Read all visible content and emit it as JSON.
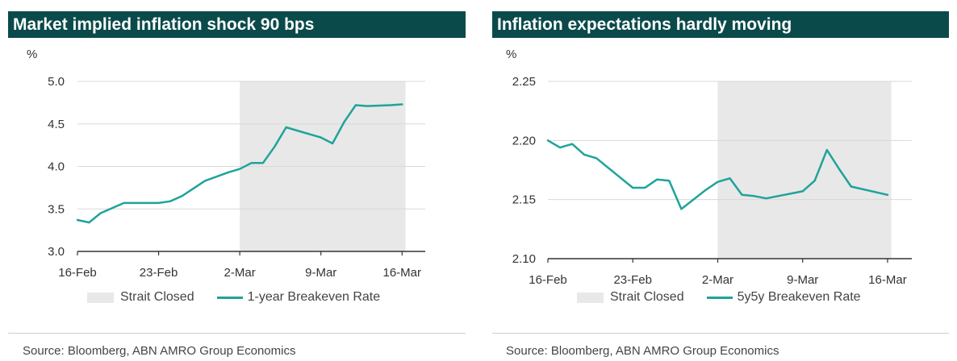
{
  "colors": {
    "title_bg": "#0b4a4a",
    "line": "#1fa39a",
    "shade": "#e8e8e8",
    "grid": "#d9d9d9",
    "axis": "#333333"
  },
  "chart_data": [
    {
      "type": "line",
      "title": "Market implied inflation shock 90 bps",
      "ylabel": "%",
      "ylim": [
        3.0,
        5.0
      ],
      "yticks": [
        "3.0",
        "3.5",
        "4.0",
        "4.5",
        "5.0"
      ],
      "xlim": [
        0,
        30
      ],
      "xticks": [
        {
          "label": "16-Feb",
          "day": 0
        },
        {
          "label": "23-Feb",
          "day": 7
        },
        {
          "label": "2-Mar",
          "day": 14
        },
        {
          "label": "9-Mar",
          "day": 21
        },
        {
          "label": "16-Mar",
          "day": 28
        }
      ],
      "shaded": {
        "name": "Strait Closed",
        "from_day": 14,
        "to_day": 28.3
      },
      "series": [
        {
          "name": "1-year Breakeven Rate",
          "x": [
            0,
            1,
            2,
            4,
            5,
            6,
            7,
            8,
            9,
            10,
            11,
            13,
            14,
            15,
            16,
            17,
            18,
            20,
            21,
            22,
            23,
            24,
            25,
            27,
            28
          ],
          "values": [
            3.37,
            3.34,
            3.45,
            3.57,
            3.57,
            3.57,
            3.57,
            3.59,
            3.65,
            3.74,
            3.83,
            3.93,
            3.97,
            4.04,
            4.04,
            4.23,
            4.46,
            4.38,
            4.34,
            4.27,
            4.52,
            4.72,
            4.71,
            4.72,
            4.73
          ]
        }
      ],
      "legend": {
        "shade_label": "Strait Closed",
        "line_label": "1-year Breakeven Rate"
      },
      "source": "Source:  Bloomberg, ABN AMRO Group Economics"
    },
    {
      "type": "line",
      "title": "Inflation expectations hardly moving",
      "ylabel": "%",
      "ylim": [
        2.1,
        2.25
      ],
      "yticks": [
        "2.10",
        "2.15",
        "2.20",
        "2.25"
      ],
      "xlim": [
        0,
        30
      ],
      "xticks": [
        {
          "label": "16-Feb",
          "day": 0
        },
        {
          "label": "23-Feb",
          "day": 7
        },
        {
          "label": "2-Mar",
          "day": 14
        },
        {
          "label": "9-Mar",
          "day": 21
        },
        {
          "label": "16-Mar",
          "day": 28
        }
      ],
      "shaded": {
        "name": "Strait Closed",
        "from_day": 14,
        "to_day": 28.3
      },
      "series": [
        {
          "name": "5y5y Breakeven Rate",
          "x": [
            0,
            1,
            2,
            3,
            4,
            7,
            8,
            9,
            10,
            11,
            13,
            14,
            15,
            16,
            17,
            18,
            21,
            22,
            23,
            24,
            25,
            28
          ],
          "values": [
            2.2,
            2.194,
            2.197,
            2.188,
            2.185,
            2.16,
            2.16,
            2.167,
            2.166,
            2.142,
            2.158,
            2.165,
            2.168,
            2.154,
            2.153,
            2.151,
            2.157,
            2.166,
            2.192,
            2.176,
            2.161,
            2.154
          ]
        }
      ],
      "legend": {
        "shade_label": "Strait Closed",
        "line_label": "5y5y Breakeven Rate"
      },
      "source": "Source: Bloomberg, ABN AMRO Group Economics"
    }
  ]
}
